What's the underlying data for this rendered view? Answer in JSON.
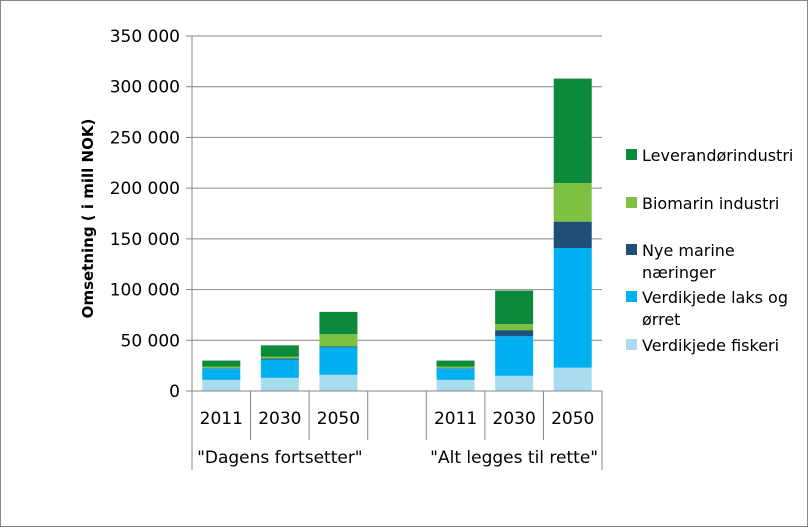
{
  "chart_data": {
    "type": "bar",
    "stacked": true,
    "title": "",
    "xlabel": "",
    "ylabel": "Omsetning ( i mill NOK)",
    "ylim": [
      0,
      350000
    ],
    "y_ticks": [
      "0",
      "50 000",
      "100 000",
      "150 000",
      "200 000",
      "250 000",
      "300 000",
      "350 000"
    ],
    "y_tick_values": [
      0,
      50000,
      100000,
      150000,
      200000,
      250000,
      300000,
      350000
    ],
    "grid": true,
    "legend_placement": "right",
    "groups": [
      {
        "label": "\"Dagens fortsetter\"",
        "categories": [
          "2011",
          "2030",
          "2050"
        ]
      },
      {
        "label": "\"Alt legges til rette\"",
        "categories": [
          "2011",
          "2030",
          "2050"
        ]
      }
    ],
    "categories": [
      "2011",
      "2030",
      "2050",
      "",
      "2011",
      "2030",
      "2050"
    ],
    "series": [
      {
        "name": "Verdikjede fiskeri",
        "color": "#a6dcee",
        "values": [
          11000,
          13000,
          16000,
          null,
          11000,
          15000,
          23000
        ]
      },
      {
        "name": "Verdikjede laks og ørret",
        "color": "#00b0f0",
        "values": [
          11000,
          18000,
          27000,
          null,
          11000,
          39000,
          118000
        ]
      },
      {
        "name": "Nye marine næringer",
        "color": "#1f4e79",
        "values": [
          500,
          1000,
          1000,
          null,
          500,
          6000,
          26000
        ]
      },
      {
        "name": "Biomarin industri",
        "color": "#7dc142",
        "values": [
          1500,
          2000,
          12000,
          null,
          1500,
          6000,
          38000
        ]
      },
      {
        "name": "Leverandørindustri",
        "color": "#0a8a3a",
        "values": [
          6000,
          11000,
          22000,
          null,
          6000,
          33000,
          103000
        ]
      }
    ],
    "legend_order": [
      "Leverandørindustri",
      "Biomarin industri",
      "Nye marine næringer",
      "Verdikjede laks og ørret",
      "Verdikjede fiskeri"
    ],
    "legend_labels": [
      [
        "Leverandørindustri"
      ],
      [
        "Biomarin industri"
      ],
      [
        "Nye marine",
        "næringer"
      ],
      [
        "Verdikjede laks og",
        "ørret"
      ],
      [
        "Verdikjede fiskeri"
      ]
    ]
  }
}
